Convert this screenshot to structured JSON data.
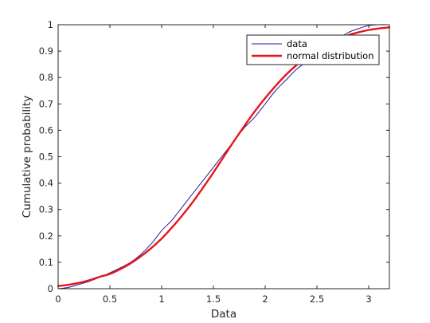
{
  "chart_data": {
    "type": "line",
    "title": "",
    "xlabel": "Data",
    "ylabel": "Cumulative probability",
    "xlim": [
      0,
      3.2
    ],
    "ylim": [
      0,
      1
    ],
    "xticks": [
      0,
      0.5,
      1,
      1.5,
      2,
      2.5,
      3
    ],
    "xtick_labels": [
      "0",
      "0.5",
      "1",
      "1.5",
      "2",
      "2.5",
      "3"
    ],
    "yticks": [
      0,
      0.1,
      0.2,
      0.3,
      0.4,
      0.5,
      0.6,
      0.7,
      0.8,
      0.9,
      1
    ],
    "ytick_labels": [
      "0",
      "0.1",
      "0.2",
      "0.3",
      "0.4",
      "0.5",
      "0.6",
      "0.7",
      "0.8",
      "0.9",
      "1"
    ],
    "grid": false,
    "legend_position": "top-right",
    "series": [
      {
        "name": "data",
        "color": "#2b1a9a",
        "x": [
          0,
          0.1,
          0.2,
          0.3,
          0.4,
          0.5,
          0.6,
          0.7,
          0.8,
          0.9,
          1.0,
          1.1,
          1.2,
          1.3,
          1.4,
          1.5,
          1.6,
          1.7,
          1.8,
          1.9,
          2.0,
          2.1,
          2.2,
          2.3,
          2.4,
          2.5,
          2.6,
          2.7,
          2.8,
          2.9,
          3.0,
          3.1,
          3.2
        ],
        "y": [
          0.0,
          0.005,
          0.016,
          0.028,
          0.043,
          0.06,
          0.079,
          0.1,
          0.13,
          0.17,
          0.22,
          0.26,
          0.31,
          0.36,
          0.41,
          0.46,
          0.51,
          0.56,
          0.61,
          0.65,
          0.7,
          0.75,
          0.79,
          0.83,
          0.86,
          0.89,
          0.92,
          0.945,
          0.97,
          0.985,
          0.997,
          1.0,
          1.0
        ]
      },
      {
        "name": "normal distribution",
        "color": "#e8151c",
        "x": [
          0,
          0.1,
          0.2,
          0.3,
          0.4,
          0.5,
          0.6,
          0.7,
          0.8,
          0.9,
          1.0,
          1.1,
          1.2,
          1.3,
          1.4,
          1.5,
          1.6,
          1.7,
          1.8,
          1.9,
          2.0,
          2.1,
          2.2,
          2.3,
          2.4,
          2.5,
          2.6,
          2.7,
          2.8,
          2.9,
          3.0,
          3.1,
          3.2
        ],
        "y": [
          0.01,
          0.015,
          0.022,
          0.032,
          0.045,
          0.056,
          0.074,
          0.096,
          0.123,
          0.154,
          0.19,
          0.232,
          0.278,
          0.328,
          0.383,
          0.44,
          0.5,
          0.56,
          0.617,
          0.672,
          0.722,
          0.768,
          0.81,
          0.846,
          0.877,
          0.904,
          0.926,
          0.945,
          0.96,
          0.971,
          0.98,
          0.986,
          0.99
        ]
      }
    ]
  }
}
